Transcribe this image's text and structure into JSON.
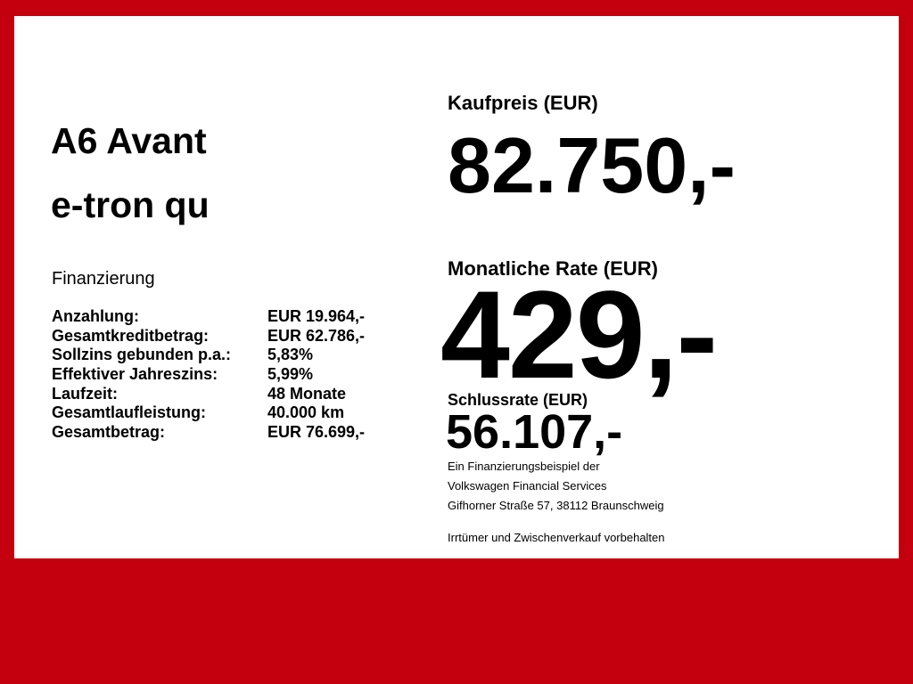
{
  "vehicle": {
    "title_line1": "A6 Avant",
    "title_line2": "e-tron qu"
  },
  "financing": {
    "heading": "Finanzierung",
    "rows": [
      {
        "label": "Anzahlung:",
        "value": "EUR 19.964,-"
      },
      {
        "label": "Gesamtkreditbetrag:",
        "value": "EUR 62.786,-"
      },
      {
        "label": "Sollzins gebunden p.a.:",
        "value": "5,83%"
      },
      {
        "label": "Effektiver Jahreszins:",
        "value": "5,99%"
      },
      {
        "label": "Laufzeit:",
        "value": "48 Monate"
      },
      {
        "label": "Gesamtlaufleistung:",
        "value": "40.000 km"
      },
      {
        "label": "Gesamtbetrag:",
        "value": "EUR 76.699,-"
      }
    ]
  },
  "price": {
    "purchase_label": "Kaufpreis (EUR)",
    "purchase_value": "82.750,-",
    "monthly_label": "Monatliche Rate (EUR)",
    "monthly_value": "429,-",
    "final_label": "Schlussrate (EUR)",
    "final_value": "56.107,-"
  },
  "footer": {
    "line1": "Ein Finanzierungsbeispiel der",
    "line2": "Volkswagen Financial Services",
    "line3": "Gifhorner Straße 57, 38112 Braunschweig",
    "disclaimer": "Irrtümer und Zwischenverkauf vorbehalten"
  },
  "colors": {
    "background": "#c4000f",
    "panel": "#ffffff"
  }
}
